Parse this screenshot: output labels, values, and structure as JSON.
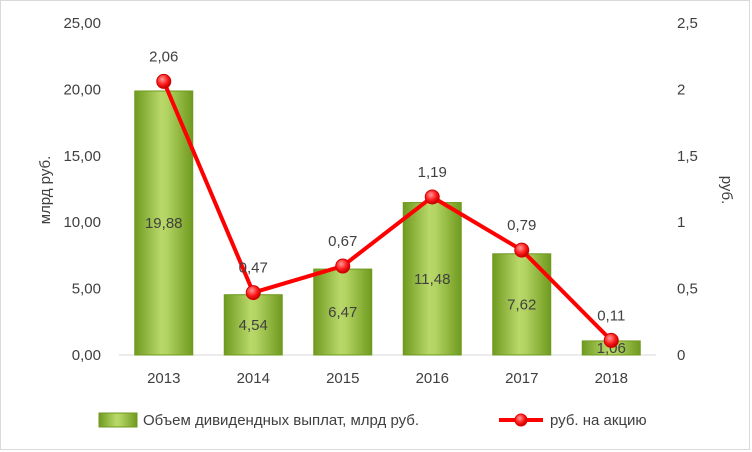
{
  "chart_data": {
    "type": "bar",
    "categories": [
      "2013",
      "2014",
      "2015",
      "2016",
      "2017",
      "2018"
    ],
    "series": [
      {
        "name": "Объем дивидендных выплат, млрд руб.",
        "type": "bar",
        "axis": "left",
        "values": [
          19.88,
          4.54,
          6.47,
          11.48,
          7.62,
          1.06
        ],
        "labels": [
          "19,88",
          "4,54",
          "6,47",
          "11,48",
          "7,62",
          "1,06"
        ],
        "color": "#8db33a"
      },
      {
        "name": "руб. на акцию",
        "type": "line",
        "axis": "right",
        "values": [
          2.06,
          0.47,
          0.67,
          1.19,
          0.79,
          0.11
        ],
        "labels": [
          "2,06",
          "0,47",
          "0,67",
          "1,19",
          "0,79",
          "0,11"
        ],
        "color": "#ff0000"
      }
    ],
    "y_left": {
      "label": "млрд руб.",
      "min": 0,
      "max": 25,
      "step": 5,
      "tick_labels": [
        "0,00",
        "5,00",
        "10,00",
        "15,00",
        "20,00",
        "25,00"
      ]
    },
    "y_right": {
      "label": "руб.",
      "min": 0,
      "max": 2.5,
      "step": 0.5,
      "tick_labels": [
        "0",
        "0,5",
        "1",
        "1,5",
        "2",
        "2,5"
      ]
    },
    "grid": false,
    "legend": "bottom"
  }
}
